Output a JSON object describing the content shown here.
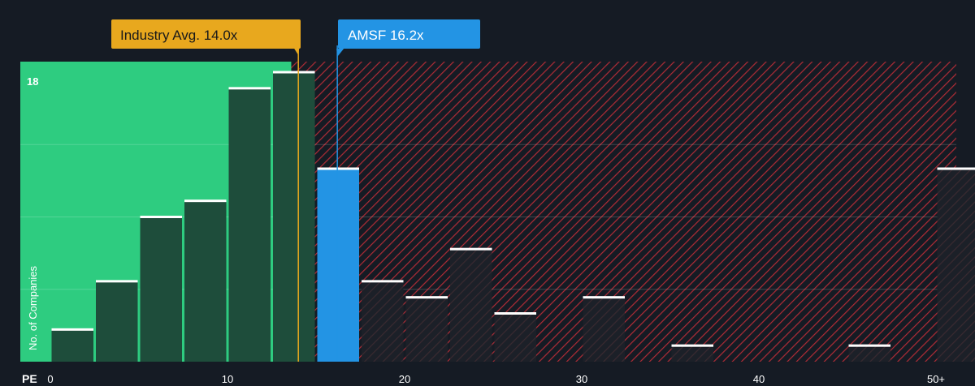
{
  "chart_data": {
    "type": "bar",
    "xlabel": "PE",
    "ylabel": "No. of Companies",
    "y_top_tick": "18",
    "ylim": [
      0,
      18.6
    ],
    "x_ticks": [
      "0",
      "10",
      "20",
      "30",
      "40",
      "50+"
    ],
    "x_tick_values": [
      0,
      10,
      20,
      30,
      40,
      50
    ],
    "xlim": [
      0,
      50.7
    ],
    "bin_width": 2.5,
    "bins": [
      {
        "start": 0,
        "value": 2
      },
      {
        "start": 2.5,
        "value": 5
      },
      {
        "start": 5,
        "value": 9
      },
      {
        "start": 7.5,
        "value": 10
      },
      {
        "start": 10,
        "value": 17
      },
      {
        "start": 12.5,
        "value": 18
      },
      {
        "start": 15,
        "value": 12
      },
      {
        "start": 17.5,
        "value": 5
      },
      {
        "start": 20,
        "value": 4
      },
      {
        "start": 22.5,
        "value": 7
      },
      {
        "start": 25,
        "value": 3
      },
      {
        "start": 30,
        "value": 4
      },
      {
        "start": 35,
        "value": 1
      },
      {
        "start": 45,
        "value": 1
      },
      {
        "start": 50,
        "value": 12
      }
    ],
    "industry_avg": {
      "label": "Industry Avg. 14.0x",
      "value": 14.0
    },
    "company": {
      "label": "AMSF 16.2x",
      "value": 16.2
    },
    "fair_region_end": 13.6,
    "colors": {
      "background": "#151b24",
      "green_region": "#2ecc80",
      "green_bar": "#1e4d3b",
      "red_hatch": "#c0303a",
      "dark_bar": "#1c2129",
      "company_bar": "#2394e4",
      "industry_marker": "#e8a81e",
      "bar_cap": "#ffffff",
      "axis_text": "#ffffff"
    }
  }
}
